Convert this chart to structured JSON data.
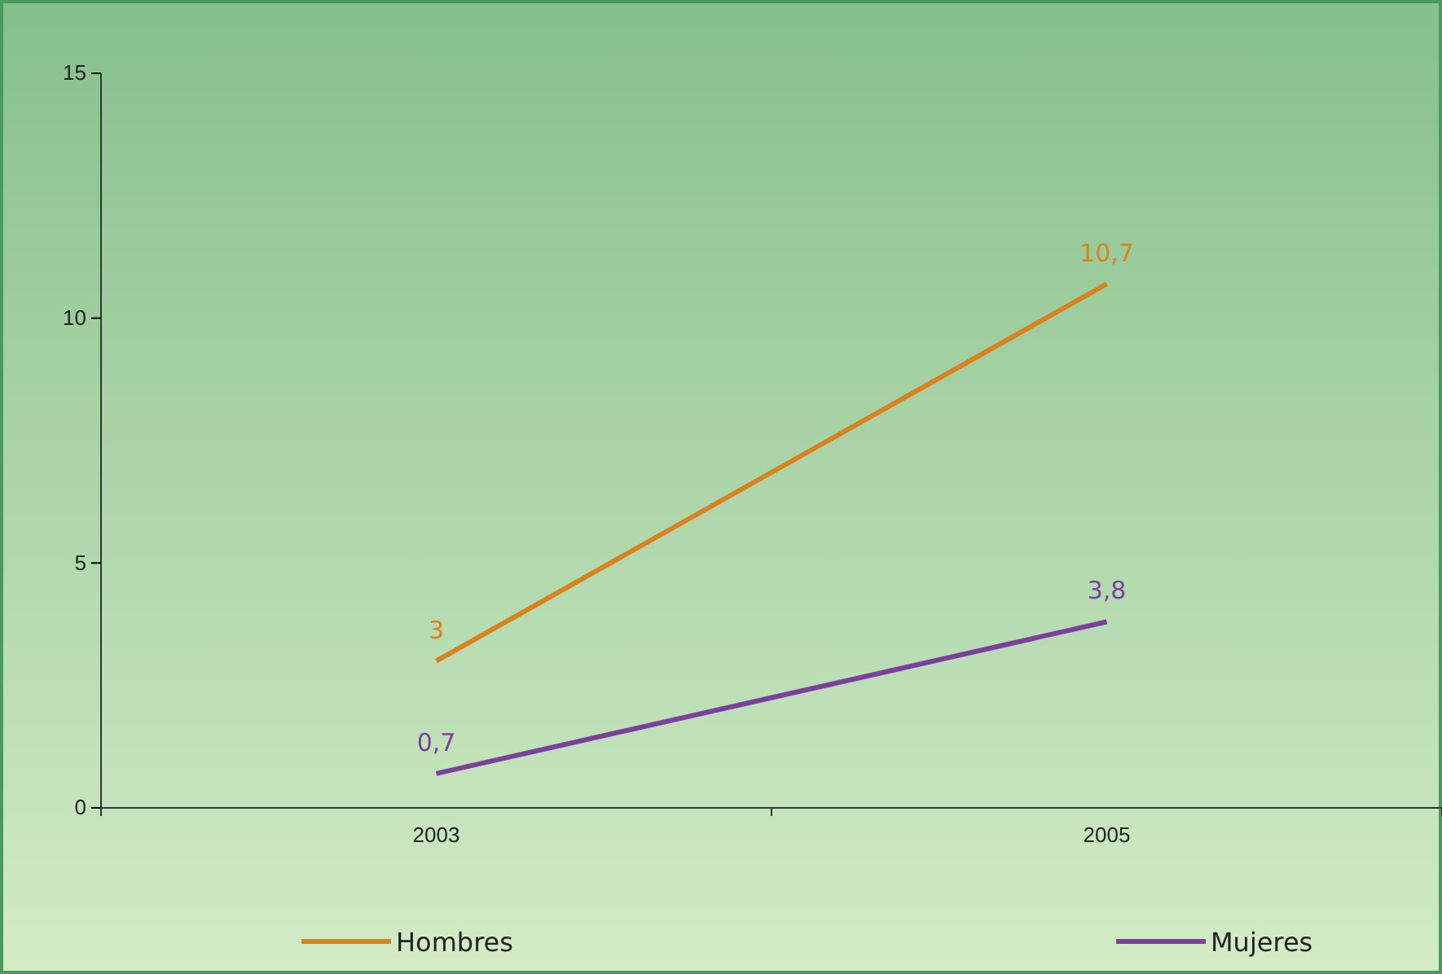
{
  "chart_data": {
    "type": "line",
    "categories": [
      "2003",
      "2005"
    ],
    "series": [
      {
        "name": "Hombres",
        "color": "#d9821e",
        "values": [
          3,
          10.7
        ],
        "value_labels": [
          "3",
          "10,7"
        ]
      },
      {
        "name": "Mujeres",
        "color": "#7b3f9e",
        "values": [
          0.7,
          3.8
        ],
        "value_labels": [
          "0,7",
          "3,8"
        ]
      }
    ],
    "ylim": [
      0,
      15
    ],
    "yticks": [
      0,
      5,
      10,
      15
    ],
    "grid": false,
    "legend": "bottom",
    "marker": "none",
    "line_style": "solid"
  }
}
